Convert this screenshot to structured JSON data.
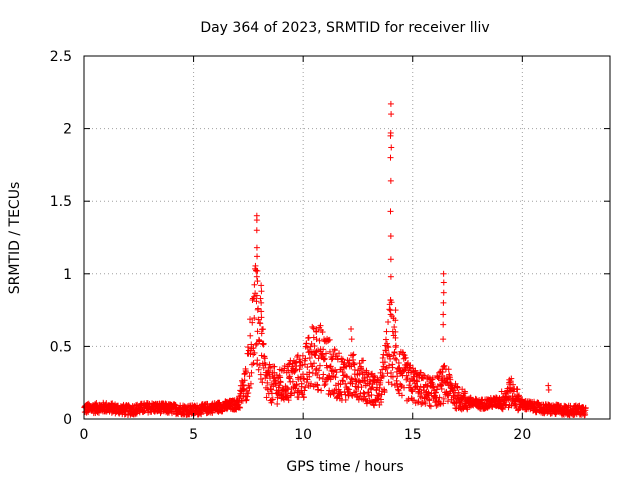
{
  "chart_data": {
    "type": "scatter",
    "title": "Day 364 of 2023, SRMTID for receiver lliv",
    "xlabel": "GPS time / hours",
    "ylabel": "SRMTID / TECUs",
    "xlim": [
      0,
      24
    ],
    "ylim": [
      0,
      2.5
    ],
    "xticks": [
      0,
      5,
      10,
      15,
      20
    ],
    "xtick_labels": [
      "0",
      "5",
      "10",
      "15",
      "20"
    ],
    "yticks": [
      0,
      0.5,
      1,
      1.5,
      2,
      2.5
    ],
    "ytick_labels": [
      "0",
      "0.5",
      "1",
      "1.5",
      "2",
      "2.5"
    ],
    "grid": true,
    "marker": "plus",
    "color": "#ff0000",
    "series": [
      {
        "name": "SRMTID",
        "x_range": [
          0,
          22.9
        ],
        "baseline": [
          [
            0,
            0.07
          ],
          [
            1,
            0.08
          ],
          [
            2,
            0.06
          ],
          [
            3,
            0.08
          ],
          [
            4,
            0.07
          ],
          [
            5,
            0.06
          ],
          [
            6,
            0.08
          ],
          [
            7,
            0.1
          ],
          [
            7.4,
            0.25
          ],
          [
            7.6,
            0.5
          ],
          [
            7.8,
            0.7
          ],
          [
            8.0,
            0.6
          ],
          [
            8.3,
            0.25
          ],
          [
            9,
            0.22
          ],
          [
            9.5,
            0.28
          ],
          [
            10,
            0.3
          ],
          [
            10.5,
            0.45
          ],
          [
            11,
            0.4
          ],
          [
            11.5,
            0.3
          ],
          [
            12,
            0.28
          ],
          [
            12.5,
            0.3
          ],
          [
            13,
            0.22
          ],
          [
            13.5,
            0.18
          ],
          [
            14,
            0.55
          ],
          [
            14.3,
            0.35
          ],
          [
            14.8,
            0.25
          ],
          [
            15.5,
            0.2
          ],
          [
            16,
            0.18
          ],
          [
            16.5,
            0.25
          ],
          [
            17,
            0.15
          ],
          [
            17.5,
            0.12
          ],
          [
            18,
            0.1
          ],
          [
            19,
            0.12
          ],
          [
            19.5,
            0.18
          ],
          [
            20,
            0.1
          ],
          [
            21,
            0.07
          ],
          [
            22,
            0.06
          ],
          [
            22.9,
            0.06
          ]
        ],
        "peaks": [
          {
            "x": 7.9,
            "values": [
              0.85,
              0.95,
              0.98,
              1.02,
              1.12,
              1.18,
              1.3,
              1.37,
              1.4
            ]
          },
          {
            "x": 8.1,
            "values": [
              0.7,
              0.8,
              0.88,
              0.92
            ]
          },
          {
            "x": 10.6,
            "values": [
              0.55,
              0.6,
              0.62
            ]
          },
          {
            "x": 12.2,
            "values": [
              0.55,
              0.62
            ]
          },
          {
            "x": 14.0,
            "values": [
              0.72,
              0.82,
              0.98,
              1.1,
              1.26,
              1.43,
              1.64,
              1.8,
              1.87,
              1.95,
              1.97,
              2.1,
              2.17
            ]
          },
          {
            "x": 14.2,
            "values": [
              0.6,
              0.68,
              0.75
            ]
          },
          {
            "x": 16.4,
            "values": [
              0.55,
              0.65,
              0.72,
              0.8,
              0.87,
              0.94,
              1.0
            ]
          },
          {
            "x": 19.4,
            "values": [
              0.24,
              0.27
            ]
          },
          {
            "x": 21.2,
            "values": [
              0.2,
              0.23
            ]
          }
        ]
      }
    ]
  }
}
